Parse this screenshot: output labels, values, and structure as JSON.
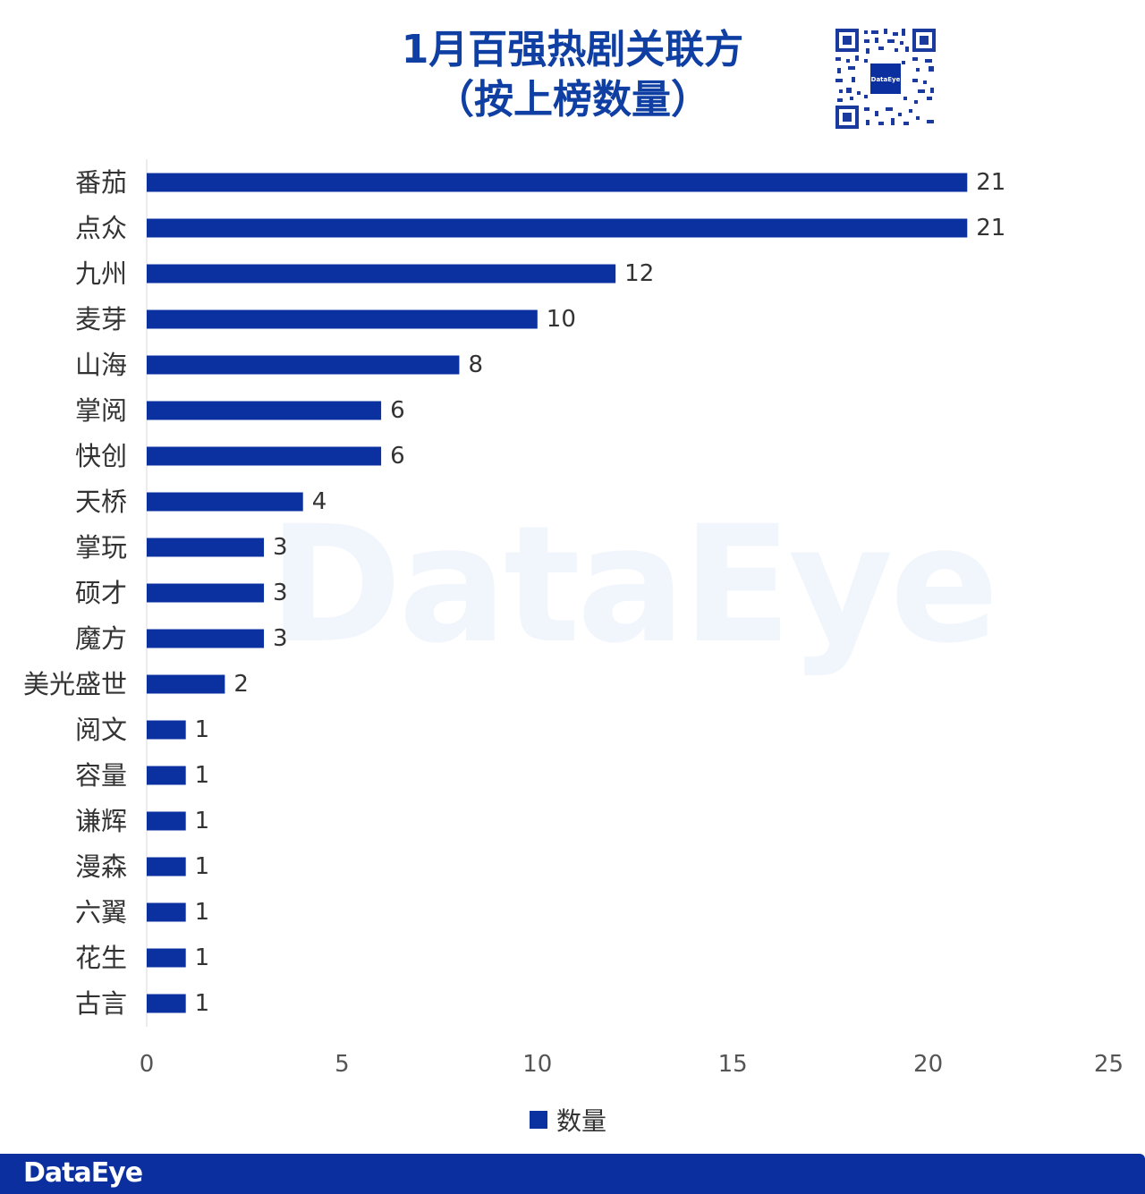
{
  "title_line1": "1月百强热剧关联方",
  "title_line2": "（按上榜数量）",
  "brand": "DataEye",
  "qr_label": "DataEye",
  "watermark": "DataEye",
  "colors": {
    "bar": "#0b31a0",
    "title": "#0f3fa2",
    "footer": "#0b2f9e"
  },
  "chart_data": {
    "type": "bar",
    "orientation": "horizontal",
    "title": "1月百强热剧关联方（按上榜数量）",
    "categories": [
      "番茄",
      "点众",
      "九州",
      "麦芽",
      "山海",
      "掌阅",
      "快创",
      "天桥",
      "掌玩",
      "硕才",
      "魔方",
      "美光盛世",
      "阅文",
      "容量",
      "谦辉",
      "漫森",
      "六翼",
      "花生",
      "古言"
    ],
    "series": [
      {
        "name": "数量",
        "values": [
          21,
          21,
          12,
          10,
          8,
          6,
          6,
          4,
          3,
          3,
          3,
          2,
          1,
          1,
          1,
          1,
          1,
          1,
          1
        ]
      }
    ],
    "xlim": [
      0,
      25
    ],
    "xticks": [
      0,
      5,
      10,
      15,
      20,
      25
    ],
    "data_labels": true,
    "grid": false,
    "legend_position": "bottom"
  }
}
